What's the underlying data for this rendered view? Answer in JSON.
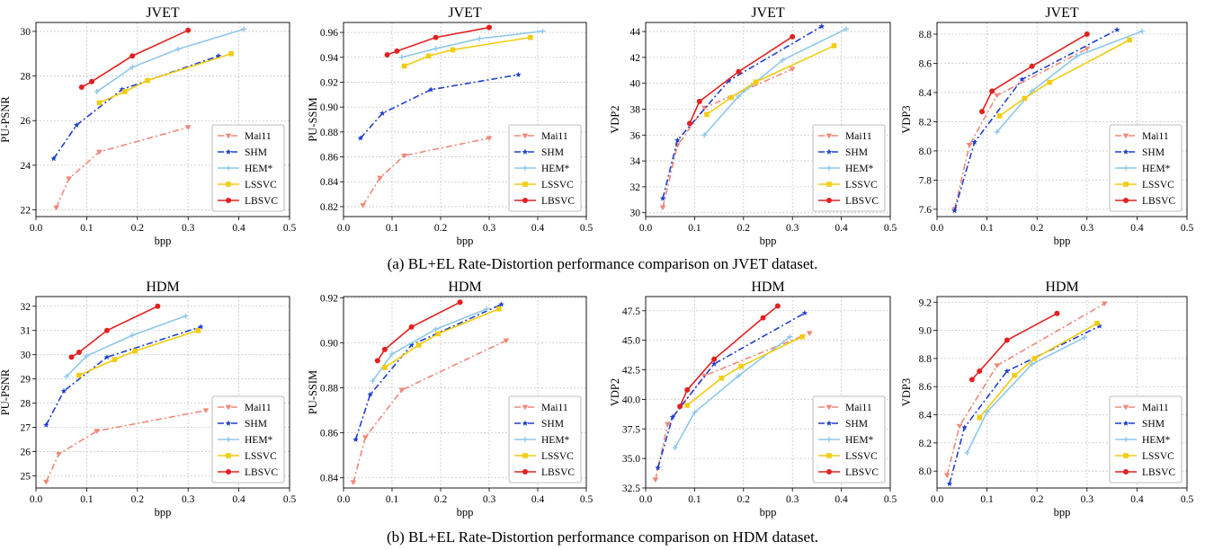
{
  "captions": {
    "a": "(a) BL+EL Rate-Distortion performance comparison on JVET dataset.",
    "b": "(b) BL+EL Rate-Distortion performance comparison on HDM dataset."
  },
  "legend_styles": [
    {
      "name": "Mai11",
      "color": "#f08878",
      "dash": "7,3,2,3",
      "marker": "tri-down"
    },
    {
      "name": "SHM",
      "color": "#1f3fcf",
      "dash": "7,3,2,3",
      "marker": "star"
    },
    {
      "name": "HEM*",
      "color": "#8ec8ea",
      "dash": "",
      "marker": "plus"
    },
    {
      "name": "LSSVC",
      "color": "#f2cc10",
      "dash": "",
      "marker": "square"
    },
    {
      "name": "LBSVC",
      "color": "#e32020",
      "dash": "",
      "marker": "circle"
    }
  ],
  "chart_data": [
    {
      "type": "line",
      "title": "JVET",
      "xlabel": "bpp",
      "ylabel": "PU-PSNR",
      "xlim": [
        0,
        0.5
      ],
      "ylim": [
        21.7,
        30.4
      ],
      "xticks": [
        "0.0",
        "0.1",
        "0.2",
        "0.3",
        "0.4",
        "0.5"
      ],
      "yticks": [
        "22",
        "24",
        "26",
        "28",
        "30"
      ],
      "grid": true,
      "legend": "bottom-right",
      "series": [
        {
          "name": "Mai11",
          "x": [
            0.04,
            0.065,
            0.125,
            0.3
          ],
          "y": [
            22.1,
            23.4,
            24.6,
            25.7
          ]
        },
        {
          "name": "SHM",
          "x": [
            0.035,
            0.08,
            0.17,
            0.36
          ],
          "y": [
            24.3,
            25.8,
            27.4,
            28.9
          ]
        },
        {
          "name": "HEM*",
          "x": [
            0.12,
            0.19,
            0.28,
            0.41
          ],
          "y": [
            27.3,
            28.4,
            29.2,
            30.1
          ]
        },
        {
          "name": "LSSVC",
          "x": [
            0.125,
            0.175,
            0.22,
            0.385
          ],
          "y": [
            26.8,
            27.3,
            27.8,
            29.0
          ]
        },
        {
          "name": "LBSVC",
          "x": [
            0.09,
            0.11,
            0.19,
            0.3
          ],
          "y": [
            27.5,
            27.75,
            28.9,
            30.05
          ]
        }
      ]
    },
    {
      "type": "line",
      "title": "JVET",
      "xlabel": "bpp",
      "ylabel": "PU-SSIM",
      "xlim": [
        0,
        0.5
      ],
      "ylim": [
        0.812,
        0.968
      ],
      "xticks": [
        "0.0",
        "0.1",
        "0.2",
        "0.3",
        "0.4",
        "0.5"
      ],
      "yticks": [
        "0.82",
        "0.84",
        "0.86",
        "0.88",
        "0.90",
        "0.92",
        "0.94",
        "0.96"
      ],
      "grid": true,
      "legend": "bottom-right",
      "series": [
        {
          "name": "Mai11",
          "x": [
            0.04,
            0.075,
            0.125,
            0.3
          ],
          "y": [
            0.821,
            0.843,
            0.861,
            0.875
          ]
        },
        {
          "name": "SHM",
          "x": [
            0.035,
            0.08,
            0.18,
            0.36
          ],
          "y": [
            0.875,
            0.895,
            0.914,
            0.926
          ]
        },
        {
          "name": "HEM*",
          "x": [
            0.12,
            0.19,
            0.28,
            0.41
          ],
          "y": [
            0.94,
            0.947,
            0.955,
            0.961
          ]
        },
        {
          "name": "LSSVC",
          "x": [
            0.125,
            0.175,
            0.225,
            0.385
          ],
          "y": [
            0.933,
            0.941,
            0.946,
            0.956
          ]
        },
        {
          "name": "LBSVC",
          "x": [
            0.09,
            0.11,
            0.19,
            0.3
          ],
          "y": [
            0.942,
            0.945,
            0.956,
            0.964
          ]
        }
      ]
    },
    {
      "type": "line",
      "title": "JVET",
      "xlabel": "bpp",
      "ylabel": "VDP2",
      "xlim": [
        0,
        0.5
      ],
      "ylim": [
        29.7,
        44.7
      ],
      "xticks": [
        "0.0",
        "0.1",
        "0.2",
        "0.3",
        "0.4",
        "0.5"
      ],
      "yticks": [
        "30",
        "32",
        "34",
        "36",
        "38",
        "40",
        "42",
        "44"
      ],
      "grid": true,
      "legend": "bottom-right",
      "series": [
        {
          "name": "Mai11",
          "x": [
            0.035,
            0.065,
            0.12,
            0.3
          ],
          "y": [
            30.4,
            35.2,
            38.1,
            41.1
          ]
        },
        {
          "name": "SHM",
          "x": [
            0.035,
            0.065,
            0.17,
            0.36
          ],
          "y": [
            31.1,
            35.6,
            40.2,
            44.4
          ]
        },
        {
          "name": "HEM*",
          "x": [
            0.12,
            0.19,
            0.28,
            0.41
          ],
          "y": [
            36.0,
            39.0,
            41.8,
            44.2
          ]
        },
        {
          "name": "LSSVC",
          "x": [
            0.125,
            0.175,
            0.225,
            0.385
          ],
          "y": [
            37.6,
            38.9,
            40.1,
            42.9
          ]
        },
        {
          "name": "LBSVC",
          "x": [
            0.09,
            0.11,
            0.19,
            0.3
          ],
          "y": [
            36.9,
            38.6,
            40.9,
            43.6
          ]
        }
      ]
    },
    {
      "type": "line",
      "title": "JVET",
      "xlabel": "bpp",
      "ylabel": "VDP3",
      "xlim": [
        0,
        0.5
      ],
      "ylim": [
        7.55,
        8.88
      ],
      "xticks": [
        "0.0",
        "0.1",
        "0.2",
        "0.3",
        "0.4",
        "0.5"
      ],
      "yticks": [
        "7.6",
        "7.8",
        "8.0",
        "8.2",
        "8.4",
        "8.6",
        "8.8"
      ],
      "grid": true,
      "legend": "bottom-right",
      "series": [
        {
          "name": "Mai11",
          "x": [
            0.035,
            0.065,
            0.12,
            0.3
          ],
          "y": [
            7.6,
            8.04,
            8.38,
            8.7
          ]
        },
        {
          "name": "SHM",
          "x": [
            0.035,
            0.075,
            0.17,
            0.36
          ],
          "y": [
            7.59,
            8.06,
            8.49,
            8.83
          ]
        },
        {
          "name": "HEM*",
          "x": [
            0.12,
            0.19,
            0.28,
            0.41
          ],
          "y": [
            8.13,
            8.41,
            8.65,
            8.82
          ]
        },
        {
          "name": "LSSVC",
          "x": [
            0.125,
            0.175,
            0.225,
            0.385
          ],
          "y": [
            8.24,
            8.36,
            8.47,
            8.76
          ]
        },
        {
          "name": "LBSVC",
          "x": [
            0.09,
            0.11,
            0.19,
            0.3
          ],
          "y": [
            8.27,
            8.41,
            8.58,
            8.8
          ]
        }
      ]
    },
    {
      "type": "line",
      "title": "HDM",
      "xlabel": "bpp",
      "ylabel": "PU-PSNR",
      "xlim": [
        0,
        0.5
      ],
      "ylim": [
        24.5,
        32.4
      ],
      "xticks": [
        "0.0",
        "0.1",
        "0.2",
        "0.3",
        "0.4",
        "0.5"
      ],
      "yticks": [
        "25",
        "26",
        "27",
        "28",
        "29",
        "30",
        "31",
        "32"
      ],
      "grid": true,
      "legend": "bottom-right",
      "series": [
        {
          "name": "Mai11",
          "x": [
            0.02,
            0.045,
            0.12,
            0.335
          ],
          "y": [
            24.75,
            25.9,
            26.85,
            27.7
          ]
        },
        {
          "name": "SHM",
          "x": [
            0.02,
            0.055,
            0.14,
            0.325
          ],
          "y": [
            27.1,
            28.5,
            29.9,
            31.15
          ]
        },
        {
          "name": "HEM*",
          "x": [
            0.06,
            0.1,
            0.19,
            0.295
          ],
          "y": [
            29.1,
            29.95,
            30.8,
            31.6
          ]
        },
        {
          "name": "LSSVC",
          "x": [
            0.085,
            0.155,
            0.195,
            0.32
          ],
          "y": [
            29.15,
            29.8,
            30.15,
            31.0
          ]
        },
        {
          "name": "LBSVC",
          "x": [
            0.07,
            0.085,
            0.14,
            0.24
          ],
          "y": [
            29.9,
            30.1,
            31.0,
            32.0
          ]
        }
      ]
    },
    {
      "type": "line",
      "title": "HDM",
      "xlabel": "bpp",
      "ylabel": "PU-SSIM",
      "xlim": [
        0,
        0.5
      ],
      "ylim": [
        0.8355,
        0.9205
      ],
      "xticks": [
        "0.0",
        "0.1",
        "0.2",
        "0.3",
        "0.4",
        "0.5"
      ],
      "yticks": [
        "0.84",
        "0.86",
        "0.88",
        "0.90",
        "0.92"
      ],
      "grid": true,
      "legend": "bottom-right",
      "series": [
        {
          "name": "Mai11",
          "x": [
            0.02,
            0.045,
            0.12,
            0.335
          ],
          "y": [
            0.838,
            0.858,
            0.879,
            0.901
          ]
        },
        {
          "name": "SHM",
          "x": [
            0.025,
            0.055,
            0.14,
            0.325
          ],
          "y": [
            0.857,
            0.877,
            0.899,
            0.917
          ]
        },
        {
          "name": "HEM*",
          "x": [
            0.06,
            0.1,
            0.19,
            0.295
          ],
          "y": [
            0.883,
            0.895,
            0.906,
            0.915
          ]
        },
        {
          "name": "LSSVC",
          "x": [
            0.085,
            0.155,
            0.195,
            0.32
          ],
          "y": [
            0.889,
            0.899,
            0.904,
            0.915
          ]
        },
        {
          "name": "LBSVC",
          "x": [
            0.07,
            0.085,
            0.14,
            0.24
          ],
          "y": [
            0.892,
            0.897,
            0.907,
            0.918
          ]
        }
      ]
    },
    {
      "type": "line",
      "title": "HDM",
      "xlabel": "bpp",
      "ylabel": "VDP2",
      "xlim": [
        0,
        0.5
      ],
      "ylim": [
        32.5,
        48.7
      ],
      "xticks": [
        "0.0",
        "0.1",
        "0.2",
        "0.3",
        "0.4",
        "0.5"
      ],
      "yticks": [
        "32.5",
        "35.0",
        "37.5",
        "40.0",
        "42.5",
        "45.0",
        "47.5"
      ],
      "grid": true,
      "legend": "bottom-right",
      "series": [
        {
          "name": "Mai11",
          "x": [
            0.02,
            0.045,
            0.12,
            0.335
          ],
          "y": [
            33.2,
            37.9,
            42.0,
            45.6
          ]
        },
        {
          "name": "SHM",
          "x": [
            0.025,
            0.055,
            0.14,
            0.325
          ],
          "y": [
            34.2,
            38.5,
            43.0,
            47.3
          ]
        },
        {
          "name": "HEM*",
          "x": [
            0.06,
            0.1,
            0.19,
            0.295
          ],
          "y": [
            35.9,
            38.9,
            42.0,
            45.3
          ]
        },
        {
          "name": "LSSVC",
          "x": [
            0.085,
            0.155,
            0.195,
            0.32
          ],
          "y": [
            39.5,
            41.8,
            42.8,
            45.3
          ]
        },
        {
          "name": "LBSVC",
          "x": [
            0.07,
            0.085,
            0.14,
            0.24,
            0.27
          ],
          "y": [
            39.4,
            40.8,
            43.4,
            46.9,
            47.9
          ]
        }
      ]
    },
    {
      "type": "line",
      "title": "HDM",
      "xlabel": "bpp",
      "ylabel": "VDP3",
      "xlim": [
        0,
        0.5
      ],
      "ylim": [
        7.88,
        9.24
      ],
      "xticks": [
        "0.0",
        "0.1",
        "0.2",
        "0.3",
        "0.4",
        "0.5"
      ],
      "yticks": [
        "8.0",
        "8.2",
        "8.4",
        "8.6",
        "8.8",
        "9.0",
        "9.2"
      ],
      "grid": true,
      "legend": "bottom-right",
      "series": [
        {
          "name": "Mai11",
          "x": [
            0.02,
            0.045,
            0.12,
            0.335
          ],
          "y": [
            7.97,
            8.32,
            8.75,
            9.19
          ]
        },
        {
          "name": "SHM",
          "x": [
            0.025,
            0.055,
            0.14,
            0.325
          ],
          "y": [
            7.91,
            8.31,
            8.71,
            9.03
          ]
        },
        {
          "name": "HEM*",
          "x": [
            0.06,
            0.1,
            0.19,
            0.295
          ],
          "y": [
            8.13,
            8.42,
            8.76,
            8.95
          ]
        },
        {
          "name": "LSSVC",
          "x": [
            0.085,
            0.155,
            0.195,
            0.32
          ],
          "y": [
            8.38,
            8.68,
            8.8,
            9.05
          ]
        },
        {
          "name": "LBSVC",
          "x": [
            0.07,
            0.085,
            0.14,
            0.24
          ],
          "y": [
            8.65,
            8.71,
            8.93,
            9.12
          ]
        }
      ]
    }
  ]
}
